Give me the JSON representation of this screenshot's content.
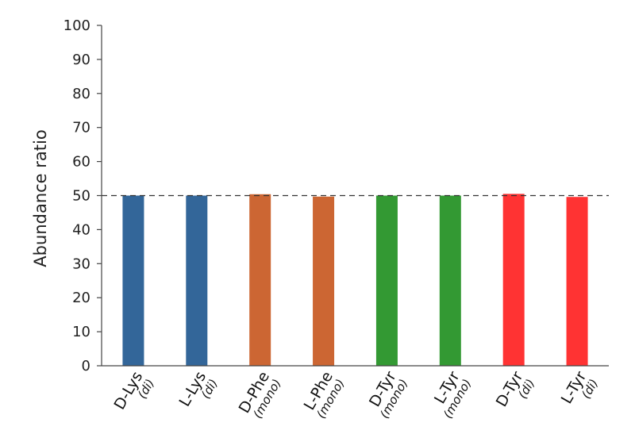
{
  "chart_data": {
    "type": "bar",
    "categories": [
      {
        "name": "D-Lys",
        "note": "(di)"
      },
      {
        "name": "L-Lys",
        "note": "(di)"
      },
      {
        "name": "D-Phe",
        "note": "(mono)"
      },
      {
        "name": "L-Phe",
        "note": "(mono)"
      },
      {
        "name": "D-Tyr",
        "note": "(mono)"
      },
      {
        "name": "L-Tyr",
        "note": "(mono)"
      },
      {
        "name": "D-Tyr",
        "note": "(di)"
      },
      {
        "name": "L-Tyr",
        "note": "(di)"
      }
    ],
    "values": [
      50.0,
      50.0,
      50.4,
      49.7,
      50.0,
      50.0,
      50.5,
      49.6
    ],
    "colors": [
      "#336699",
      "#336699",
      "#cc6633",
      "#cc6633",
      "#339933",
      "#339933",
      "#ff3333",
      "#ff3333"
    ],
    "ylabel": "Abundance ratio",
    "xlabel": "",
    "ylim": [
      0,
      100
    ],
    "yticks": [
      0,
      10,
      20,
      30,
      40,
      50,
      60,
      70,
      80,
      90,
      100
    ],
    "reference_line": {
      "value": 50,
      "style": "dashed"
    },
    "grid": false
  }
}
